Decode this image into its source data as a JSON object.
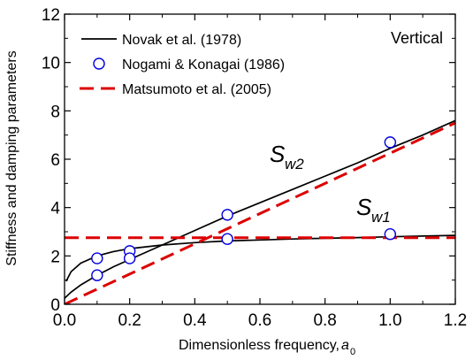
{
  "chart_data": {
    "type": "line",
    "xlabel": "Dimensionless frequency, ",
    "xlabel_sub": "0",
    "xlabel_var": "a",
    "ylabel": "Stiffness and damping parameters",
    "annotation": "Vertical",
    "xlim": [
      0,
      1.2
    ],
    "ylim": [
      0,
      12
    ],
    "xticks": [
      0.0,
      0.2,
      0.4,
      0.6,
      0.8,
      1.0,
      1.2
    ],
    "xtick_labels": [
      "0.0",
      "0.2",
      "0.4",
      "0.6",
      "0.8",
      "1.0",
      "1.2"
    ],
    "yticks": [
      0,
      2,
      4,
      6,
      8,
      10,
      12
    ],
    "ytick_labels": [
      "0",
      "2",
      "4",
      "6",
      "8",
      "10",
      "12"
    ],
    "legend": [
      {
        "label": "Novak et al. (1978)",
        "style": "solid-line",
        "color": "#000000"
      },
      {
        "label": "Nogami & Konagai (1986)",
        "style": "open-circle",
        "color": "#0000dd"
      },
      {
        "label": "Matsumoto et al. (2005)",
        "style": "dashed-line",
        "color": "#dd0000"
      }
    ],
    "legend_position": "top-left",
    "curve_labels": [
      {
        "main": "S",
        "sub": "w2"
      },
      {
        "main": "S",
        "sub": "w1"
      }
    ],
    "series": [
      {
        "legend_index": 0,
        "style": "solid",
        "color": "#000000",
        "x": [
          0.005,
          0.02,
          0.05,
          0.1,
          0.15,
          0.2,
          0.3,
          0.4,
          0.5,
          0.6,
          0.7,
          0.8,
          0.9,
          1.0,
          1.1,
          1.2
        ],
        "y": [
          0.95,
          1.35,
          1.7,
          2.0,
          2.18,
          2.3,
          2.45,
          2.55,
          2.62,
          2.66,
          2.7,
          2.73,
          2.76,
          2.79,
          2.82,
          2.85
        ]
      },
      {
        "legend_index": 0,
        "style": "solid",
        "color": "#000000",
        "x": [
          0.0,
          0.02,
          0.05,
          0.1,
          0.15,
          0.2,
          0.3,
          0.4,
          0.5,
          0.6,
          0.7,
          0.8,
          0.9,
          1.0,
          1.1,
          1.2
        ],
        "y": [
          0.25,
          0.5,
          0.8,
          1.2,
          1.55,
          1.85,
          2.45,
          3.05,
          3.65,
          4.2,
          4.75,
          5.3,
          5.85,
          6.45,
          7.0,
          7.6
        ]
      },
      {
        "legend_index": 1,
        "style": "markers",
        "color": "#0000dd",
        "x": [
          0.1,
          0.2,
          0.5,
          1.0
        ],
        "y": [
          1.9,
          2.2,
          2.7,
          2.9
        ]
      },
      {
        "legend_index": 1,
        "style": "markers",
        "color": "#0000dd",
        "x": [
          0.1,
          0.2,
          0.5,
          1.0
        ],
        "y": [
          1.2,
          1.9,
          3.7,
          6.7
        ]
      },
      {
        "legend_index": 2,
        "style": "dashed",
        "color": "#dd0000",
        "x": [
          0.0,
          1.2
        ],
        "y": [
          2.75,
          2.75
        ]
      },
      {
        "legend_index": 2,
        "style": "dashed",
        "color": "#dd0000",
        "x": [
          0.0,
          1.2
        ],
        "y": [
          0.0,
          7.5
        ]
      }
    ],
    "grid": false
  }
}
